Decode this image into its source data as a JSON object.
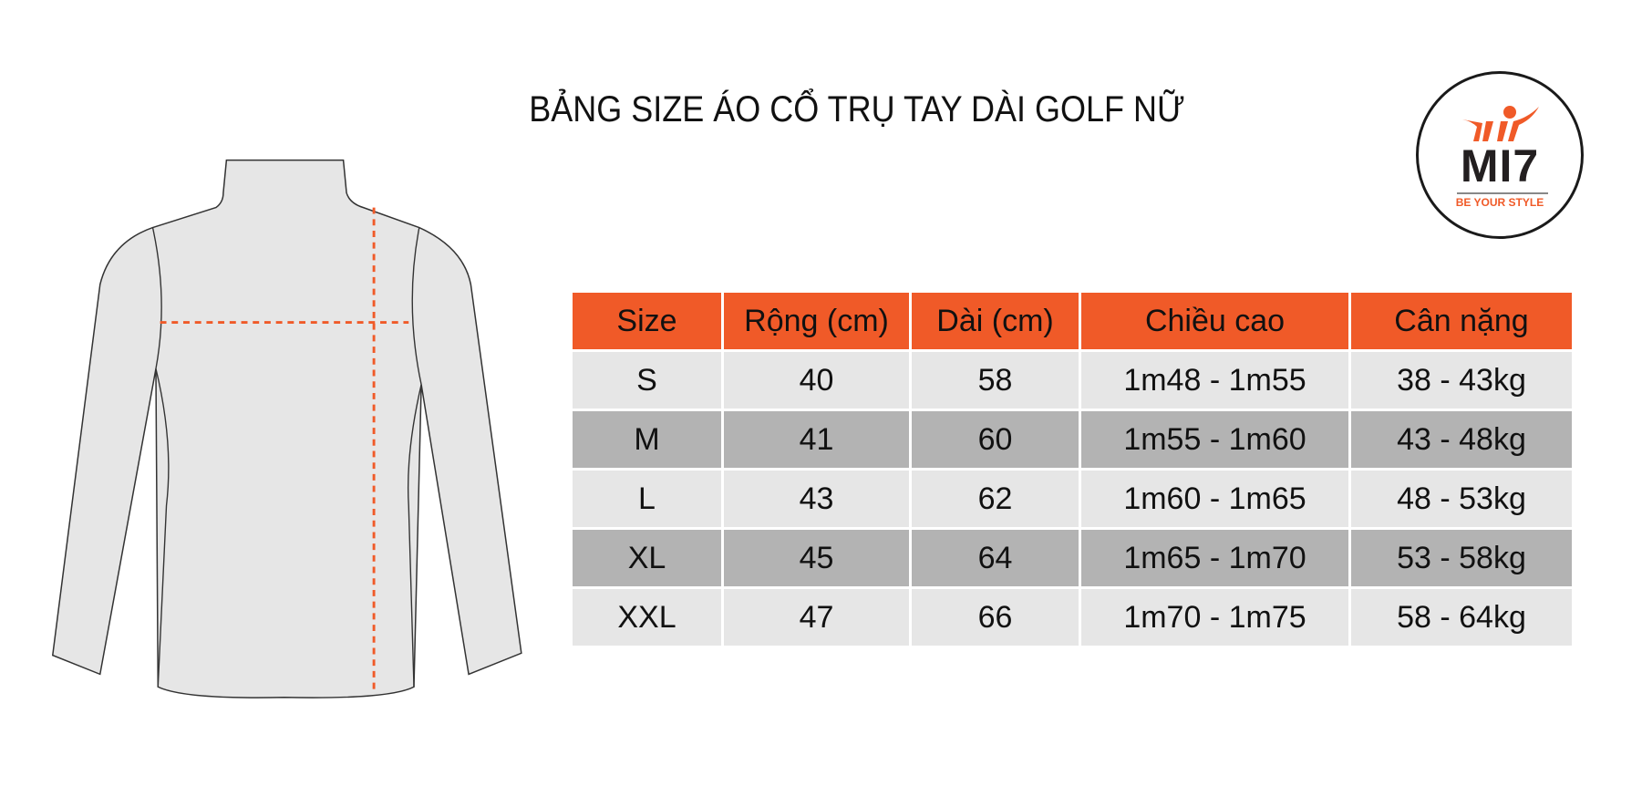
{
  "title": "BẢNG SIZE ÁO CỔ TRỤ TAY DÀI GOLF NỮ",
  "logo": {
    "brand": "MI7",
    "tagline": "BE YOUR STYLE"
  },
  "colors": {
    "accent": "#f05a28",
    "row_light": "#e6e6e6",
    "row_dark": "#b3b3b3"
  },
  "table": {
    "headers": [
      "Size",
      "Rộng (cm)",
      "Dài (cm)",
      "Chiều cao",
      "Cân nặng"
    ],
    "rows": [
      [
        "S",
        "40",
        "58",
        "1m48 - 1m55",
        "38 - 43kg"
      ],
      [
        "M",
        "41",
        "60",
        "1m55 - 1m60",
        "43 - 48kg"
      ],
      [
        "L",
        "43",
        "62",
        "1m60 - 1m65",
        "48 - 53kg"
      ],
      [
        "XL",
        "45",
        "64",
        "1m65 - 1m70",
        "53 - 58kg"
      ],
      [
        "XXL",
        "47",
        "66",
        "1m70 - 1m75",
        "58 - 64kg"
      ]
    ]
  }
}
